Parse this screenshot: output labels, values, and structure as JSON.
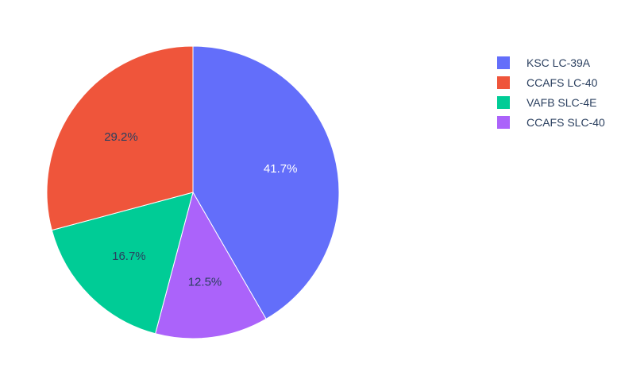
{
  "chart_data": {
    "type": "pie",
    "categories": [
      "KSC LC-39A",
      "CCAFS LC-40",
      "VAFB SLC-4E",
      "CCAFS SLC-40"
    ],
    "values": [
      41.7,
      29.2,
      16.7,
      12.5
    ],
    "slices": [
      {
        "label": "KSC LC-39A",
        "value": 41.7,
        "text": "41.7%",
        "color": "#636efa",
        "text_color": "#ffffff"
      },
      {
        "label": "CCAFS SLC-40",
        "value": 12.5,
        "text": "12.5%",
        "color": "#ab63fa",
        "text_color": "#2a3f5f"
      },
      {
        "label": "VAFB SLC-4E",
        "value": 16.7,
        "text": "16.7%",
        "color": "#00cc96",
        "text_color": "#2a3f5f"
      },
      {
        "label": "CCAFS LC-40",
        "value": 29.2,
        "text": "29.2%",
        "color": "#ef553b",
        "text_color": "#2a3f5f"
      }
    ],
    "legend": {
      "placement": "top-right",
      "items": [
        {
          "label": "KSC LC-39A",
          "color": "#636efa"
        },
        {
          "label": "CCAFS LC-40",
          "color": "#ef553b"
        },
        {
          "label": "VAFB SLC-4E",
          "color": "#00cc96"
        },
        {
          "label": "CCAFS SLC-40",
          "color": "#ab63fa"
        }
      ]
    },
    "start": "top",
    "direction": "clockwise"
  }
}
